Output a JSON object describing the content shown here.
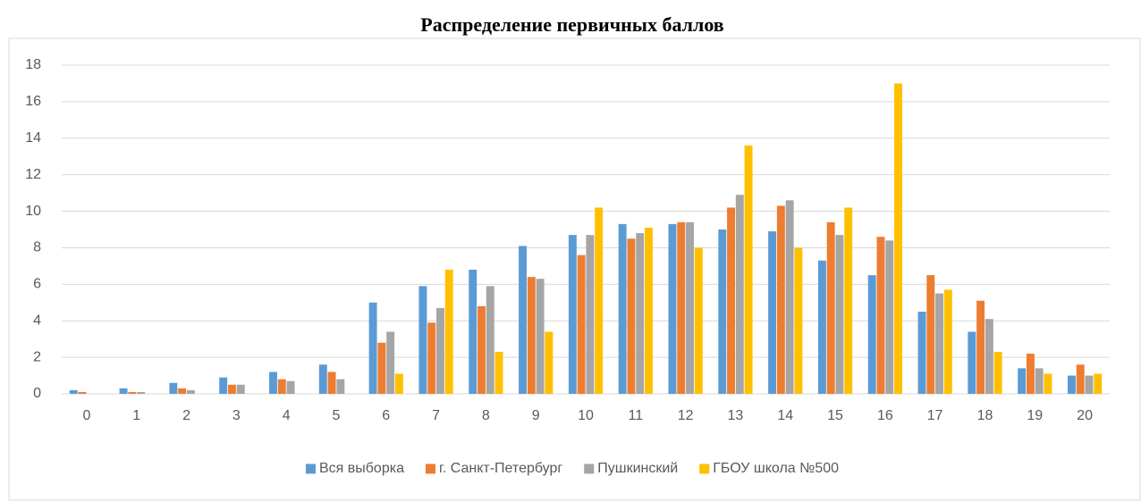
{
  "chart_data": {
    "type": "bar",
    "title": "Распределение первичных баллов",
    "categories": [
      "0",
      "1",
      "2",
      "3",
      "4",
      "5",
      "6",
      "7",
      "8",
      "9",
      "10",
      "11",
      "12",
      "13",
      "14",
      "15",
      "16",
      "17",
      "18",
      "19",
      "20"
    ],
    "series": [
      {
        "name": "Вся выборка",
        "color": "#5b9bd5",
        "values": [
          0.2,
          0.3,
          0.6,
          0.9,
          1.2,
          1.6,
          5.0,
          5.9,
          6.8,
          8.1,
          8.7,
          9.3,
          9.3,
          9.0,
          8.9,
          7.3,
          6.5,
          4.5,
          3.4,
          1.4,
          1.0
        ]
      },
      {
        "name": "г. Санкт-Петербург",
        "color": "#ed7d31",
        "values": [
          0.1,
          0.1,
          0.3,
          0.5,
          0.8,
          1.2,
          2.8,
          3.9,
          4.8,
          6.4,
          7.6,
          8.5,
          9.4,
          10.2,
          10.3,
          9.4,
          8.6,
          6.5,
          5.1,
          2.2,
          1.6
        ]
      },
      {
        "name": "Пушкинский",
        "color": "#a5a5a5",
        "values": [
          0,
          0.1,
          0.2,
          0.5,
          0.7,
          0.8,
          3.4,
          4.7,
          5.9,
          6.3,
          8.7,
          8.8,
          9.4,
          10.9,
          10.6,
          8.7,
          8.4,
          5.5,
          4.1,
          1.4,
          1.0
        ]
      },
      {
        "name": "ГБОУ школа №500",
        "color": "#ffc000",
        "values": [
          0,
          0,
          0,
          0,
          0,
          0,
          1.1,
          6.8,
          2.3,
          3.4,
          10.2,
          9.1,
          8.0,
          13.6,
          8.0,
          10.2,
          17.0,
          5.7,
          2.3,
          1.1,
          1.1
        ]
      }
    ],
    "ylim": [
      0,
      18
    ],
    "yticks": [
      0,
      2,
      4,
      6,
      8,
      10,
      12,
      14,
      16,
      18
    ],
    "grid": true,
    "legend": "bottom"
  }
}
